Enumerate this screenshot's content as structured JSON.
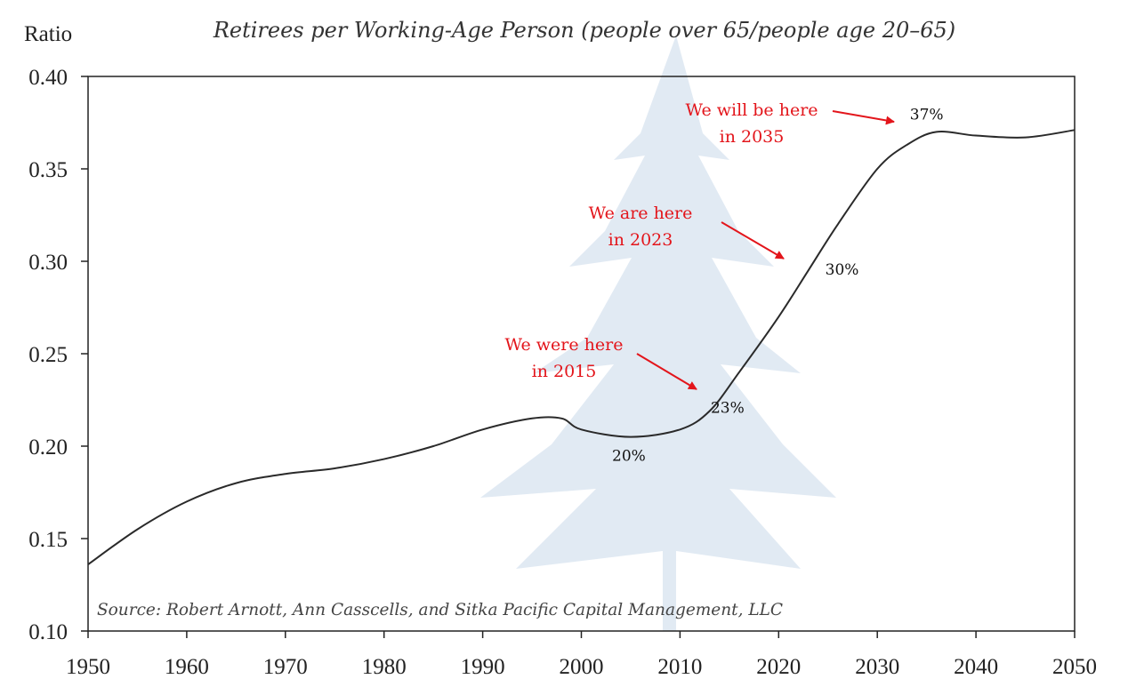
{
  "chart_data": {
    "type": "line",
    "title": "Retirees per Working-Age Person (people over 65/people age 20–65)",
    "ylabel": "Ratio",
    "xlabel": "",
    "xlim": [
      1950,
      2050
    ],
    "ylim": [
      0.1,
      0.4
    ],
    "x_ticks": [
      "1950",
      "1960",
      "1970",
      "1980",
      "1990",
      "2000",
      "2010",
      "2020",
      "2030",
      "2040",
      "2050"
    ],
    "y_ticks": [
      "0.10",
      "0.15",
      "0.20",
      "0.25",
      "0.30",
      "0.35",
      "0.40"
    ],
    "grid": false,
    "line_color": "#2a2a2a",
    "annotation_color": "#e3151b",
    "series": [
      {
        "x": [
          1950,
          1955,
          1960,
          1965,
          1970,
          1975,
          1980,
          1985,
          1990,
          1995,
          1998,
          2000,
          2005,
          2010,
          2013,
          2016,
          2020,
          2023,
          2026,
          2030,
          2033,
          2036,
          2040,
          2045,
          2050
        ],
        "y": [
          0.136,
          0.155,
          0.17,
          0.18,
          0.185,
          0.188,
          0.193,
          0.2,
          0.209,
          0.215,
          0.215,
          0.209,
          0.205,
          0.209,
          0.219,
          0.24,
          0.27,
          0.295,
          0.32,
          0.35,
          0.363,
          0.37,
          0.368,
          0.367,
          0.371
        ]
      }
    ],
    "data_labels": [
      {
        "text": "20%",
        "x": 2005,
        "y": 0.205
      },
      {
        "text": "23%",
        "x": 2015,
        "y": 0.23
      },
      {
        "text": "30%",
        "x": 2023,
        "y": 0.3
      },
      {
        "text": "37%",
        "x": 2035,
        "y": 0.37
      }
    ],
    "annotations": [
      {
        "lines": [
          "We were here",
          "in 2015"
        ],
        "x": 2015,
        "y": 0.23
      },
      {
        "lines": [
          "We are here",
          "in 2023"
        ],
        "x": 2023,
        "y": 0.3
      },
      {
        "lines": [
          "We will be here",
          "in 2035"
        ],
        "x": 2035,
        "y": 0.37
      }
    ],
    "source": "Source: Robert Arnott, Ann Casscells, and Sitka Pacific Capital Management, LLC"
  }
}
